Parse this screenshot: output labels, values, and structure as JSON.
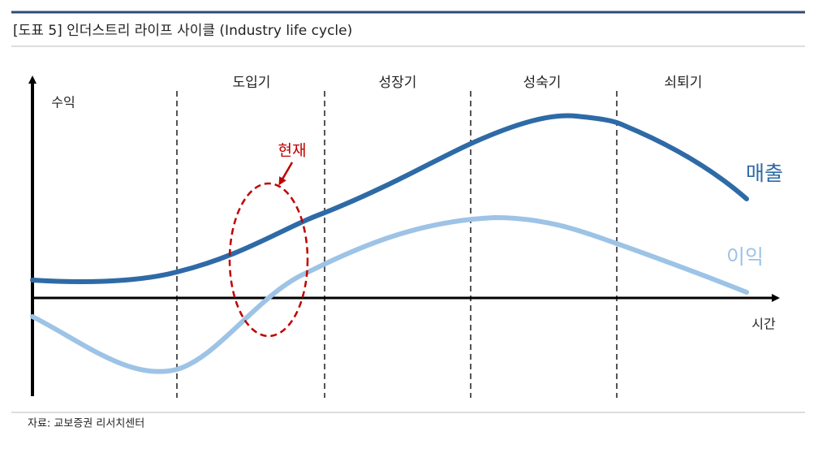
{
  "header": {
    "title": "[도표 5] 인더스트리 라이프 사이클 (Industry life cycle)"
  },
  "axes": {
    "y_label": "수익",
    "x_label": "시간"
  },
  "stages": [
    "도입기",
    "성장기",
    "성숙기",
    "쇠퇴기"
  ],
  "curves": {
    "revenue": "매출",
    "profit": "이익"
  },
  "annotation": "현재",
  "footer": {
    "source": "자료: 교보증권 리서치센터"
  }
}
